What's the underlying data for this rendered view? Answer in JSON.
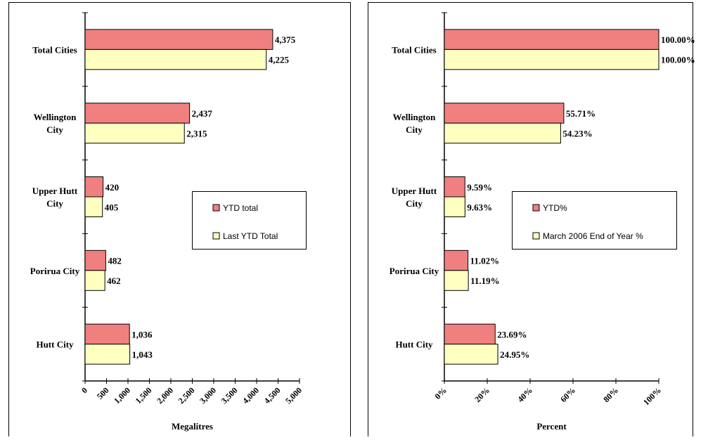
{
  "chart_data": [
    {
      "type": "bar",
      "orientation": "horizontal",
      "categories": [
        "Total Cities",
        "Wellington City",
        "Upper Hutt City",
        "Porirua City",
        "Hutt City"
      ],
      "category_lines": [
        [
          "Total Cities"
        ],
        [
          "Wellington",
          "City"
        ],
        [
          "Upper Hutt",
          "City"
        ],
        [
          "Porirua City"
        ],
        [
          "Hutt City"
        ]
      ],
      "series": [
        {
          "name": "YTD total",
          "values": [
            4375,
            2437,
            420,
            482,
            1036
          ],
          "labels": [
            "4,375",
            "2,437",
            "420",
            "482",
            "1,036"
          ],
          "color": "#f08080"
        },
        {
          "name": "Last YTD Total",
          "values": [
            4225,
            2315,
            405,
            462,
            1043
          ],
          "labels": [
            "4,225",
            "2,315",
            "405",
            "462",
            "1,043"
          ],
          "color": "#ffffc0"
        }
      ],
      "xlim": [
        0,
        5000
      ],
      "ticks": [
        0,
        500,
        1000,
        1500,
        2000,
        2500,
        3000,
        3500,
        4000,
        4500,
        5000
      ],
      "tick_labels": [
        "0",
        "500",
        "1,000",
        "1,500",
        "2,000",
        "2,500",
        "3,000",
        "3,500",
        "4,000",
        "4,500",
        "5,000"
      ],
      "xlabel": "Megalitres",
      "grid": false,
      "legend_placement": "center-right"
    },
    {
      "type": "bar",
      "orientation": "horizontal",
      "categories": [
        "Total Cities",
        "Wellington City",
        "Upper Hutt City",
        "Porirua City",
        "Hutt City"
      ],
      "category_lines": [
        [
          "Total Cities"
        ],
        [
          "Wellington",
          "City"
        ],
        [
          "Upper Hutt",
          "City"
        ],
        [
          "Porirua City"
        ],
        [
          "Hutt City"
        ]
      ],
      "series": [
        {
          "name": "YTD%",
          "values": [
            100.0,
            55.71,
            9.59,
            11.02,
            23.69
          ],
          "labels": [
            "100.00%",
            "55.71%",
            "9.59%",
            "11.02%",
            "23.69%"
          ],
          "color": "#f08080"
        },
        {
          "name": "March 2006 End of Year %",
          "values": [
            100.0,
            54.23,
            9.63,
            11.19,
            24.95
          ],
          "labels": [
            "100.00%",
            "54.23%",
            "9.63%",
            "11.19%",
            "24.95%"
          ],
          "color": "#ffffc0"
        }
      ],
      "xlim": [
        0,
        100
      ],
      "ticks": [
        0,
        20,
        40,
        60,
        80,
        100
      ],
      "tick_labels": [
        "0%",
        "20%",
        "40%",
        "60%",
        "80%",
        "100%"
      ],
      "xlabel": "Percent",
      "grid": false,
      "legend_placement": "center-right"
    }
  ]
}
